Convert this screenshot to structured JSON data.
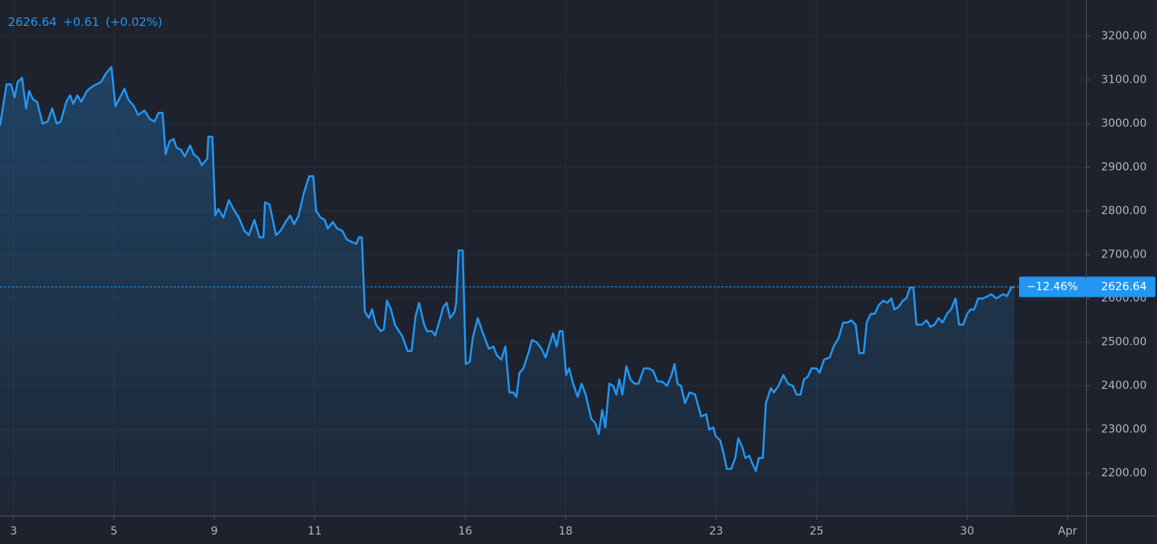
{
  "chart_data": {
    "type": "area",
    "change": "+0.61",
    "change_pct": "(+0.02%)",
    "range_change": "−12.46%",
    "color": "#2196f3",
    "grid": true,
    "xlim": [
      -0.27,
      21.37
    ],
    "ylim": [
      2103,
      3283
    ],
    "xticks": [
      {
        "value": 0,
        "label": "3"
      },
      {
        "value": 2,
        "label": "5"
      },
      {
        "value": 4,
        "label": "9"
      },
      {
        "value": 6,
        "label": "11"
      },
      {
        "value": 9,
        "label": "16"
      },
      {
        "value": 11,
        "label": "18"
      },
      {
        "value": 14,
        "label": "23"
      },
      {
        "value": 16,
        "label": "25"
      },
      {
        "value": 19,
        "label": "30"
      },
      {
        "value": 21,
        "label": "Apr"
      }
    ],
    "yticks": [
      {
        "value": 2200,
        "label": "2200.00"
      },
      {
        "value": 2300,
        "label": "2300.00"
      },
      {
        "value": 2400,
        "label": "2400.00"
      },
      {
        "value": 2500,
        "label": "2500.00"
      },
      {
        "value": 2600,
        "label": "2600.00"
      },
      {
        "value": 2700,
        "label": "2700.00"
      },
      {
        "value": 2800,
        "label": "2800.00"
      },
      {
        "value": 2900,
        "label": "2900.00"
      },
      {
        "value": 3000,
        "label": "3000.00"
      },
      {
        "value": 3100,
        "label": "3100.00"
      },
      {
        "value": 3200,
        "label": "3200.00"
      }
    ],
    "x": [
      -0.27,
      -0.14,
      -0.05,
      0.02,
      0.08,
      0.17,
      0.25,
      0.31,
      0.39,
      0.47,
      0.58,
      0.68,
      0.77,
      0.86,
      0.94,
      1.05,
      1.13,
      1.19,
      1.27,
      1.35,
      1.46,
      1.57,
      1.65,
      1.74,
      1.84,
      1.95,
      2.03,
      2.12,
      2.21,
      2.29,
      2.4,
      2.48,
      2.61,
      2.72,
      2.81,
      2.89,
      2.97,
      3.03,
      3.11,
      3.19,
      3.25,
      3.34,
      3.41,
      3.52,
      3.59,
      3.69,
      3.75,
      3.86,
      3.88,
      3.96,
      4.02,
      4.08,
      4.18,
      4.29,
      4.38,
      4.49,
      4.6,
      4.69,
      4.8,
      4.9,
      4.98,
      5.01,
      5.1,
      5.23,
      5.32,
      5.42,
      5.51,
      5.59,
      5.68,
      5.78,
      5.89,
      5.97,
      6.03,
      6.12,
      6.2,
      6.26,
      6.36,
      6.45,
      6.55,
      6.64,
      6.73,
      6.83,
      6.88,
      6.94,
      7.0,
      7.08,
      7.14,
      7.22,
      7.32,
      7.38,
      7.44,
      7.52,
      7.6,
      7.68,
      7.74,
      7.85,
      7.93,
      8.01,
      8.08,
      8.18,
      8.24,
      8.34,
      8.4,
      8.49,
      8.56,
      8.63,
      8.7,
      8.79,
      8.82,
      8.87,
      8.95,
      9.01,
      9.09,
      9.15,
      9.25,
      9.34,
      9.47,
      9.56,
      9.63,
      9.72,
      9.8,
      9.88,
      9.96,
      10.02,
      10.08,
      10.16,
      10.27,
      10.33,
      10.42,
      10.52,
      10.6,
      10.68,
      10.75,
      10.82,
      10.88,
      10.94,
      11.01,
      11.07,
      11.15,
      11.24,
      11.32,
      11.4,
      11.51,
      11.59,
      11.66,
      11.73,
      11.79,
      11.87,
      11.95,
      12.01,
      12.07,
      12.13,
      12.21,
      12.29,
      12.37,
      12.45,
      12.56,
      12.65,
      12.74,
      12.83,
      12.92,
      13.02,
      13.11,
      13.17,
      13.23,
      13.3,
      13.38,
      13.47,
      13.58,
      13.64,
      13.7,
      13.8,
      13.86,
      13.94,
      13.99,
      14.08,
      14.15,
      14.21,
      14.3,
      14.38,
      14.44,
      14.52,
      14.58,
      14.66,
      14.71,
      14.79,
      14.85,
      14.93,
      14.99,
      15.09,
      15.15,
      15.24,
      15.34,
      15.43,
      15.53,
      15.6,
      15.68,
      15.75,
      15.82,
      15.9,
      16.0,
      16.06,
      16.15,
      16.26,
      16.34,
      16.44,
      16.53,
      16.62,
      16.69,
      16.78,
      16.85,
      16.94,
      17.0,
      17.08,
      17.16,
      17.24,
      17.33,
      17.41,
      17.49,
      17.55,
      17.63,
      17.72,
      17.79,
      17.86,
      17.93,
      17.99,
      18.1,
      18.19,
      18.27,
      18.35,
      18.43,
      18.51,
      18.6,
      18.68,
      18.77,
      18.84,
      18.92,
      19.0,
      19.07,
      19.14,
      19.22,
      19.31,
      19.41,
      19.48,
      19.58,
      19.65,
      19.72,
      19.79,
      19.88,
      19.94
    ],
    "series": [
      {
        "color": "#2196f3",
        "values": [
          2995,
          3090,
          3090,
          3060,
          3095,
          3105,
          3035,
          3075,
          3055,
          3050,
          3000,
          3005,
          3035,
          3000,
          3005,
          3050,
          3065,
          3045,
          3065,
          3050,
          3075,
          3085,
          3090,
          3095,
          3115,
          3130,
          3040,
          3060,
          3080,
          3055,
          3040,
          3020,
          3030,
          3010,
          3005,
          3025,
          3025,
          2930,
          2960,
          2965,
          2945,
          2940,
          2925,
          2950,
          2930,
          2920,
          2905,
          2920,
          2970,
          2970,
          2790,
          2805,
          2785,
          2825,
          2805,
          2785,
          2755,
          2745,
          2780,
          2740,
          2740,
          2820,
          2815,
          2745,
          2755,
          2775,
          2790,
          2770,
          2790,
          2840,
          2880,
          2880,
          2800,
          2785,
          2780,
          2760,
          2775,
          2760,
          2755,
          2735,
          2730,
          2725,
          2740,
          2740,
          2570,
          2555,
          2575,
          2540,
          2525,
          2530,
          2595,
          2575,
          2540,
          2525,
          2515,
          2480,
          2480,
          2560,
          2590,
          2540,
          2525,
          2525,
          2515,
          2550,
          2580,
          2590,
          2555,
          2570,
          2590,
          2710,
          2710,
          2450,
          2455,
          2510,
          2555,
          2525,
          2485,
          2490,
          2470,
          2460,
          2490,
          2385,
          2385,
          2375,
          2430,
          2440,
          2480,
          2505,
          2500,
          2485,
          2465,
          2495,
          2520,
          2490,
          2525,
          2525,
          2425,
          2440,
          2405,
          2375,
          2405,
          2380,
          2325,
          2315,
          2290,
          2345,
          2305,
          2405,
          2400,
          2380,
          2415,
          2380,
          2445,
          2415,
          2405,
          2405,
          2440,
          2440,
          2435,
          2410,
          2410,
          2400,
          2425,
          2450,
          2405,
          2400,
          2360,
          2385,
          2380,
          2355,
          2330,
          2335,
          2300,
          2305,
          2285,
          2275,
          2245,
          2210,
          2210,
          2235,
          2280,
          2260,
          2235,
          2240,
          2225,
          2205,
          2235,
          2235,
          2360,
          2395,
          2385,
          2400,
          2425,
          2405,
          2400,
          2380,
          2380,
          2415,
          2420,
          2440,
          2440,
          2430,
          2460,
          2465,
          2490,
          2510,
          2545,
          2545,
          2550,
          2540,
          2475,
          2475,
          2545,
          2565,
          2565,
          2585,
          2595,
          2590,
          2600,
          2575,
          2580,
          2595,
          2600,
          2625,
          2625,
          2540,
          2540,
          2550,
          2535,
          2540,
          2555,
          2545,
          2565,
          2575,
          2600,
          2540,
          2540,
          2565,
          2575,
          2575,
          2600,
          2600,
          2605,
          2610,
          2600,
          2605,
          2610,
          2605,
          2625,
          2626.64
        ]
      }
    ]
  }
}
